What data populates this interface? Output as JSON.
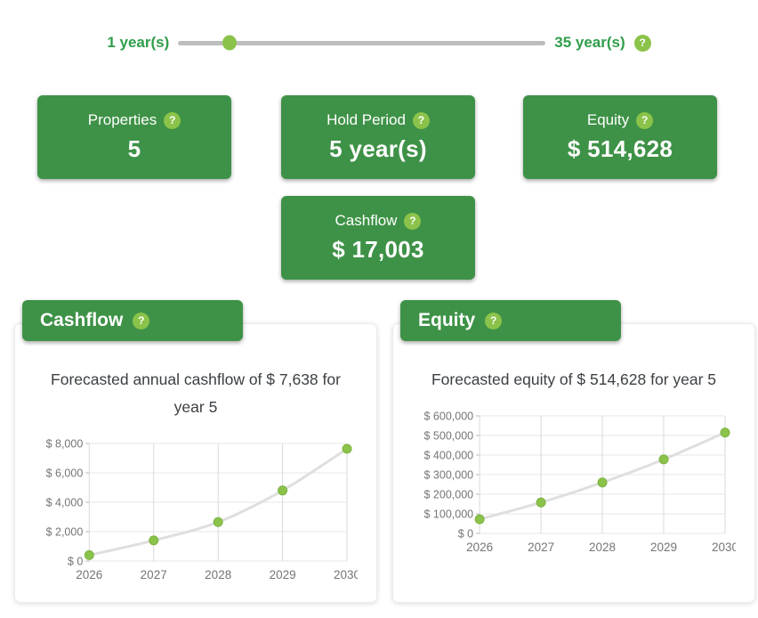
{
  "icons": {
    "help": "?"
  },
  "colors": {
    "card_green": "#3e9247",
    "accent_light_green": "#8bc34a",
    "slider_label_green": "#2f9e4a",
    "track_gray": "#bdbdbd",
    "chart_line_gray": "#dfdfdf",
    "axis_text_gray": "#757575"
  },
  "slider": {
    "min_label": "1 year(s)",
    "max_label": "35 year(s)",
    "value_percent": 14
  },
  "cards": [
    {
      "label": "Properties",
      "value": "5"
    },
    {
      "label": "Hold Period",
      "value": "5 year(s)"
    },
    {
      "label": "Equity",
      "value": "$ 514,628"
    },
    {
      "label": "Cashflow",
      "value": "$ 17,003"
    }
  ],
  "panels": [
    {
      "title": "Cashflow",
      "subtitle": "Forecasted annual cashflow of $ 7,638 for year 5"
    },
    {
      "title": "Equity",
      "subtitle": "Forecasted equity of $ 514,628 for year 5"
    }
  ],
  "chart_data": [
    {
      "type": "line",
      "title": "Forecasted annual cashflow of $ 7,638 for year 5",
      "x": [
        2026,
        2027,
        2028,
        2029,
        2030
      ],
      "series": [
        {
          "name": "Cashflow",
          "values": [
            400,
            1400,
            2650,
            4800,
            7638
          ]
        }
      ],
      "ylim": [
        0,
        8000
      ],
      "y_ticks": [
        0,
        2000,
        4000,
        6000,
        8000
      ],
      "y_tick_labels": [
        "$ 0",
        "$ 2,000",
        "$ 4,000",
        "$ 6,000",
        "$ 8,000"
      ],
      "grid": true,
      "legend": "none",
      "line_color": "#dfdfdf",
      "point_color": "#8bc34a",
      "point_stroke": "#7cb342"
    },
    {
      "type": "line",
      "title": "Forecasted equity of $ 514,628 for year 5",
      "x": [
        2026,
        2027,
        2028,
        2029,
        2030
      ],
      "series": [
        {
          "name": "Equity",
          "values": [
            72000,
            158000,
            260000,
            378000,
            514628
          ]
        }
      ],
      "ylim": [
        0,
        600000
      ],
      "y_ticks": [
        0,
        100000,
        200000,
        300000,
        400000,
        500000,
        600000
      ],
      "y_tick_labels": [
        "$ 0",
        "$ 100,000",
        "$ 200,000",
        "$ 300,000",
        "$ 400,000",
        "$ 500,000",
        "$ 600,000"
      ],
      "grid": true,
      "legend": "none",
      "line_color": "#dfdfdf",
      "point_color": "#8bc34a",
      "point_stroke": "#7cb342"
    }
  ]
}
